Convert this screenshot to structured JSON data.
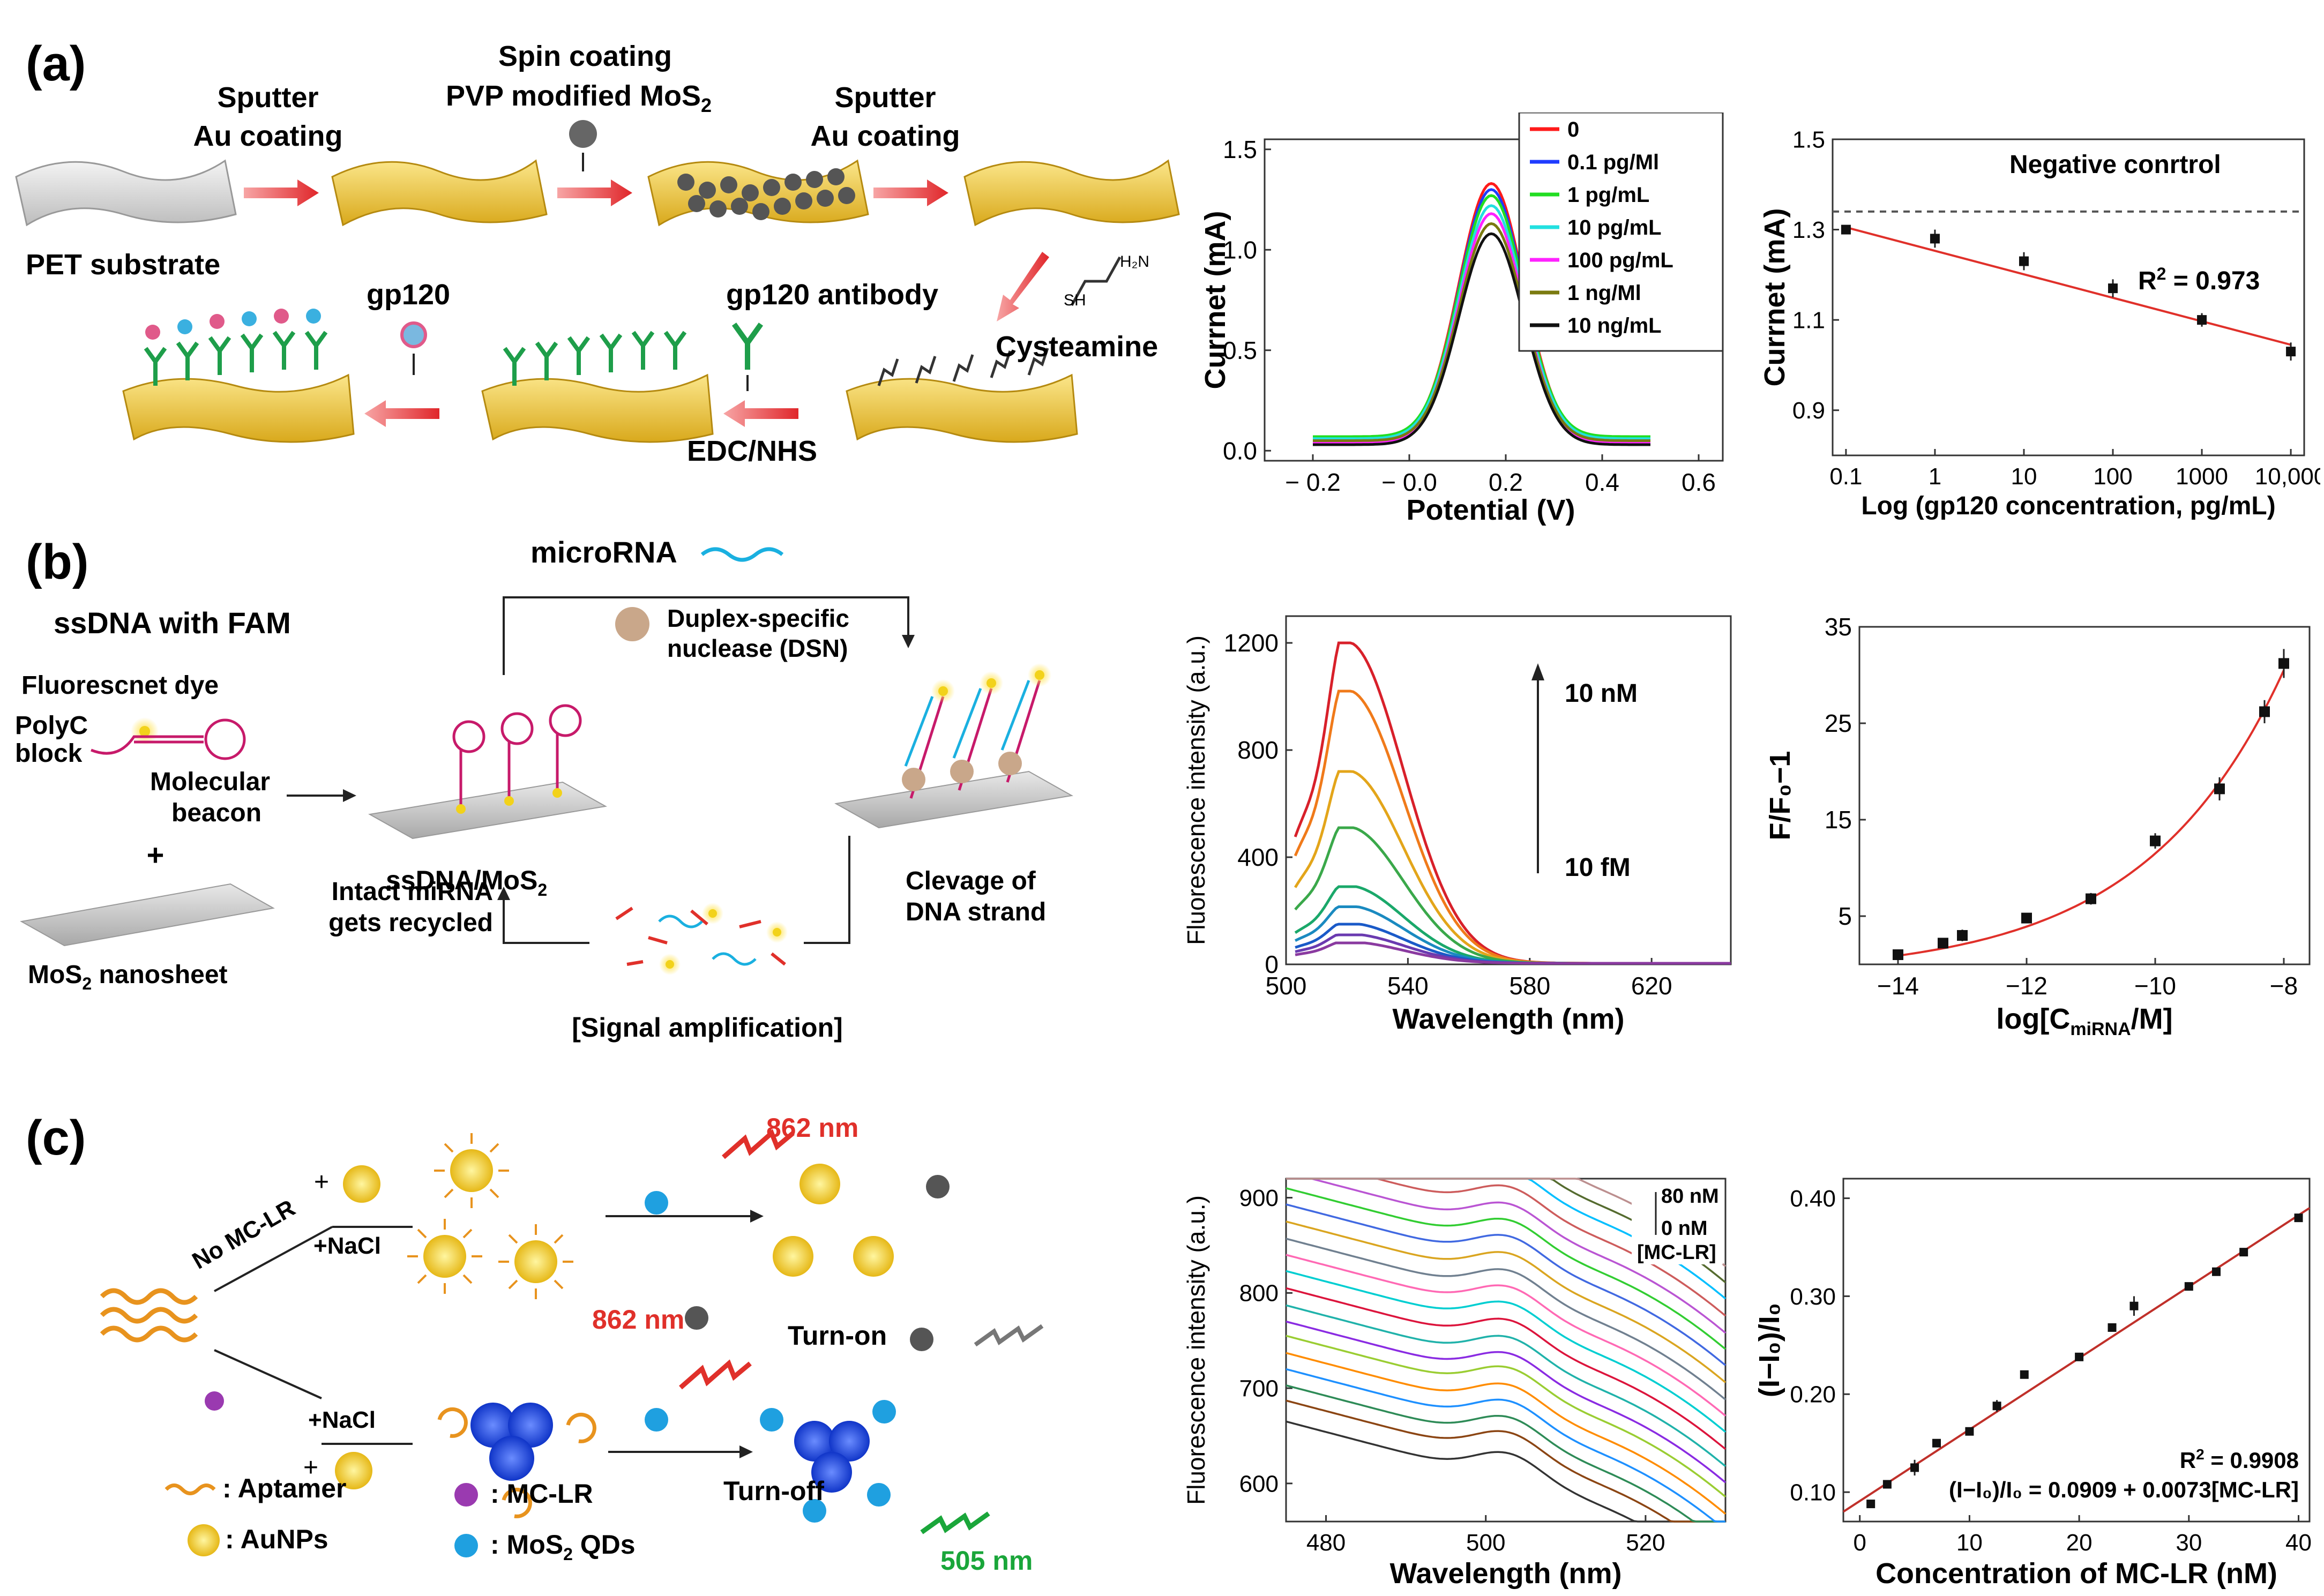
{
  "colors": {
    "arrow_red": "#e23a3a",
    "gold": "#f2cf4a",
    "gold_dark": "#c79a1b",
    "ab_green": "#1e9e4a",
    "fit_red": "#e0302a",
    "wave_orange": "#e8931e",
    "mos2_blue": "#1fa0e0",
    "auc_blue": "#1d4fd8"
  },
  "panel_a": {
    "label": "(a)",
    "schematic": {
      "step1": "Sputter\nAu coating",
      "step2_line1": "Spin coating",
      "step2_line2": "PVP modified MoS",
      "step2_sub": "2",
      "step3": "Sputter\nAu coating",
      "substrate": "PET substrate",
      "cysteamine": "Cysteamine",
      "antibody": "gp120 antibody",
      "edc": "EDC/NHS",
      "gp120": "gp120",
      "mol_sh": "SH",
      "mol_nh2": "H₂N"
    },
    "chart_dpv": {
      "type": "line",
      "xlabel": "Potential (V)",
      "ylabel": "Currnet (mA)",
      "xlim": [
        -0.3,
        0.65
      ],
      "ylim": [
        -0.05,
        1.55
      ],
      "xticks": [
        "− 0.2",
        "− 0.0",
        "0.2",
        "0.4",
        "0.6"
      ],
      "xtick_values": [
        -0.2,
        0.0,
        0.2,
        0.4,
        0.6
      ],
      "yticks": [
        "0.0",
        "0.5",
        "1.0",
        "1.5"
      ],
      "ytick_values": [
        0.0,
        0.5,
        1.0,
        1.5
      ],
      "peak_x": 0.17,
      "series": [
        {
          "name": "0",
          "color": "#ff1a1a",
          "peak": 1.33,
          "base": 0.06
        },
        {
          "name": "0.1 pg/Ml",
          "color": "#1f3cff",
          "peak": 1.3,
          "base": 0.05
        },
        {
          "name": "1 pg/mL",
          "color": "#22dd22",
          "peak": 1.27,
          "base": 0.07
        },
        {
          "name": "10 pg/mL",
          "color": "#22e0e0",
          "peak": 1.22,
          "base": 0.06
        },
        {
          "name": "100 pg/mL",
          "color": "#ff22ff",
          "peak": 1.18,
          "base": 0.04
        },
        {
          "name": "1 ng/Ml",
          "color": "#7a7a10",
          "peak": 1.13,
          "base": 0.05
        },
        {
          "name": "10 ng/mL",
          "color": "#111111",
          "peak": 1.08,
          "base": 0.03
        }
      ]
    },
    "chart_cal": {
      "type": "scatter",
      "xlabel": "Log (gp120 concentration, pg/mL)",
      "ylabel": "Currnet (mA)",
      "xlim_log": [
        -1.15,
        4.15
      ],
      "ylim": [
        0.8,
        1.5
      ],
      "xticks": [
        "0.1",
        "1",
        "10",
        "100",
        "1000",
        "10,000"
      ],
      "xtick_values": [
        -1,
        0,
        1,
        2,
        3,
        4
      ],
      "yticks": [
        "0.9",
        "1.1",
        "1.3",
        "1.5"
      ],
      "ytick_values": [
        0.9,
        1.1,
        1.3,
        1.5
      ],
      "x_log": [
        -1,
        0,
        1,
        2,
        3,
        4
      ],
      "y": [
        1.3,
        1.28,
        1.23,
        1.17,
        1.1,
        1.03
      ],
      "err": [
        0.01,
        0.02,
        0.02,
        0.02,
        0.015,
        0.02
      ],
      "fit": [
        [
          -1,
          1.305
        ],
        [
          4,
          1.045
        ]
      ],
      "negative_control": 1.34,
      "negative_control_label": "Negative conrtrol",
      "r2_label": "R",
      "r2_value": " = 0.973"
    }
  },
  "panel_b": {
    "label": "(b)",
    "schematic": {
      "microrna": "microRNA",
      "ssdna": "ssDNA with FAM",
      "dye": "Fluorescnet dye",
      "polyc_line1": "PolyC",
      "polyc_line2": "block",
      "beacon_line1": "Molecular",
      "beacon_line2": "beacon",
      "plus": "+",
      "mos2_sheet": "MoS",
      "mos2_sheet_tail": " nanosheet",
      "ssdna_mos2": "ssDNA/MoS",
      "dsn_line1": "Duplex-specific",
      "dsn_line2": "nuclease (DSN)",
      "cleavage_line1": "Clevage of",
      "cleavage_line2": "DNA strand",
      "recycle_line1": "Intact miRNA",
      "recycle_line2": "gets recycled",
      "signal": "[Signal amplification]"
    },
    "chart_fl": {
      "type": "line",
      "xlabel": "Wavelength (nm)",
      "ylabel": "Fluorescence intensity (a.u.)",
      "xlim": [
        500,
        646
      ],
      "ylim": [
        0,
        1300
      ],
      "xticks": [
        "500",
        "540",
        "580",
        "620"
      ],
      "xtick_values": [
        500,
        540,
        580,
        620
      ],
      "yticks": [
        "0",
        "400",
        "800",
        "1200"
      ],
      "ytick_values": [
        0,
        400,
        800,
        1200
      ],
      "label_high": "10 nM",
      "label_low": "10 fM",
      "series": [
        {
          "peak": 1200,
          "color": "#d8202a"
        },
        {
          "peak": 1020,
          "color": "#f07a1a"
        },
        {
          "peak": 720,
          "color": "#e3a51a"
        },
        {
          "peak": 510,
          "color": "#3aa84a"
        },
        {
          "peak": 290,
          "color": "#1aa86a"
        },
        {
          "peak": 215,
          "color": "#1a8ac0"
        },
        {
          "peak": 150,
          "color": "#1a5ac8"
        },
        {
          "peak": 110,
          "color": "#6a3ab0"
        },
        {
          "peak": 80,
          "color": "#8a3aa0"
        }
      ]
    },
    "chart_cal": {
      "type": "scatter",
      "xlabel": "log[C",
      "xlabel_sub": "miRNA",
      "xlabel_tail": "/M]",
      "ylabel": "F/F₀−1",
      "xlim": [
        -14.6,
        -7.6
      ],
      "ylim": [
        0,
        35
      ],
      "xticks": [
        "−14",
        "−12",
        "−10",
        "−8"
      ],
      "xtick_values": [
        -14,
        -12,
        -10,
        -8
      ],
      "yticks": [
        "5",
        "15",
        "25",
        "35"
      ],
      "ytick_values": [
        5,
        15,
        25,
        35
      ],
      "x": [
        -14,
        -13.3,
        -13,
        -12,
        -11,
        -10,
        -9,
        -8.3,
        -8
      ],
      "y": [
        1.0,
        2.2,
        3.0,
        4.8,
        6.8,
        12.8,
        18.2,
        26.2,
        31.2
      ],
      "err": [
        0.4,
        0.5,
        0.6,
        0.5,
        0.6,
        0.8,
        1.2,
        1.2,
        1.5
      ]
    }
  },
  "panel_c": {
    "label": "(c)",
    "schematic": {
      "no_mclr": "No MC-LR",
      "nacl1": "+NaCl",
      "nacl2": "+NaCl",
      "plus1": "+",
      "plus2": "+",
      "nm862_top": "862 nm",
      "nm862_mid": "862 nm",
      "turn_on": "Turn-on",
      "turn_off": "Turn-off",
      "nm505": "505 nm",
      "legend_aptamer": ": Aptamer",
      "legend_aunps": ": AuNPs",
      "legend_mclr": ": MC-LR",
      "legend_mos2": ": MoS",
      "legend_mos2_tail": " QDs"
    },
    "chart_fl": {
      "type": "line",
      "xlabel": "Wavelength (nm)",
      "ylabel": "Fluorescence intensity (a.u.)",
      "xlim": [
        475,
        530
      ],
      "ylim": [
        560,
        920
      ],
      "xticks": [
        "480",
        "500",
        "520"
      ],
      "xtick_values": [
        480,
        500,
        520
      ],
      "yticks": [
        "600",
        "700",
        "800",
        "900"
      ],
      "ytick_values": [
        600,
        700,
        800,
        900
      ],
      "label_high": "80 nM",
      "label_low": "0 nM",
      "label_name": "[MC-LR]",
      "offsets": [
        0,
        22,
        38,
        55,
        72,
        90,
        105,
        122,
        140,
        158,
        175,
        192,
        210,
        228,
        245,
        262,
        280,
        298,
        315,
        332
      ],
      "colors": [
        "#333333",
        "#8b4513",
        "#2e8b57",
        "#1e90ff",
        "#ff8c00",
        "#9acd32",
        "#8a2be2",
        "#20b2aa",
        "#dc143c",
        "#00ced1",
        "#ff69b4",
        "#708090",
        "#daa520",
        "#4169e1",
        "#32cd32",
        "#ba55d3",
        "#cd5c5c",
        "#00bfff",
        "#556b2f",
        "#bc8f8f"
      ]
    },
    "chart_cal": {
      "type": "scatter",
      "xlabel": "Concentration of MC-LR (nM)",
      "ylabel": "(I−I₀)/I₀",
      "xlim": [
        -1.5,
        41
      ],
      "ylim": [
        0.07,
        0.42
      ],
      "xticks": [
        "0",
        "10",
        "20",
        "30",
        "40"
      ],
      "xtick_values": [
        0,
        10,
        20,
        30,
        40
      ],
      "yticks": [
        "0.10",
        "0.20",
        "0.30",
        "0.40"
      ],
      "ytick_values": [
        0.1,
        0.2,
        0.3,
        0.4
      ],
      "x": [
        1,
        2.5,
        5,
        7,
        10,
        12.5,
        15,
        20,
        23,
        25,
        30,
        32.5,
        35,
        40
      ],
      "y": [
        0.088,
        0.108,
        0.125,
        0.15,
        0.162,
        0.188,
        0.22,
        0.238,
        0.268,
        0.29,
        0.31,
        0.325,
        0.345,
        0.38
      ],
      "err": [
        0.004,
        0.004,
        0.008,
        0.003,
        0.003,
        0.006,
        0.004,
        0.003,
        0.003,
        0.01,
        0.003,
        0.003,
        0.003,
        0.004
      ],
      "fit": [
        [
          -1.5,
          0.08
        ],
        [
          41,
          0.39
        ]
      ],
      "r2_label": "R",
      "r2_value": " = 0.9908",
      "equation": "(I−I₀)/I₀ = 0.0909 + 0.0073[MC-LR]"
    }
  }
}
